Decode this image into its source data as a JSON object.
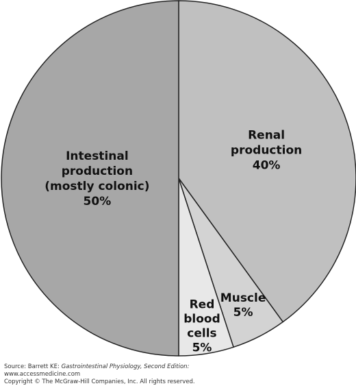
{
  "chart_data": {
    "type": "pie",
    "slices": [
      {
        "lines": [
          "Renal",
          "production",
          "40%"
        ],
        "value": 40,
        "color": "#c0c0c0"
      },
      {
        "lines": [
          "Muscle",
          "5%"
        ],
        "value": 5,
        "color": "#d3d3d3"
      },
      {
        "lines": [
          "Red",
          "blood",
          "cells",
          "5%"
        ],
        "value": 5,
        "color": "#e8e8e8"
      },
      {
        "lines": [
          "Intestinal",
          "production",
          "(mostly colonic)",
          "50%"
        ],
        "value": 50,
        "color": "#a7a7a7"
      }
    ]
  },
  "footer": {
    "source_prefix": "Source: Barrett KE: ",
    "source_title": "Gastrointestinal Physiology, Second Edition:",
    "url": "www.accessmedicine.com",
    "copyright": "Copyright © The McGraw-Hill Companies, Inc. All rights reserved."
  }
}
